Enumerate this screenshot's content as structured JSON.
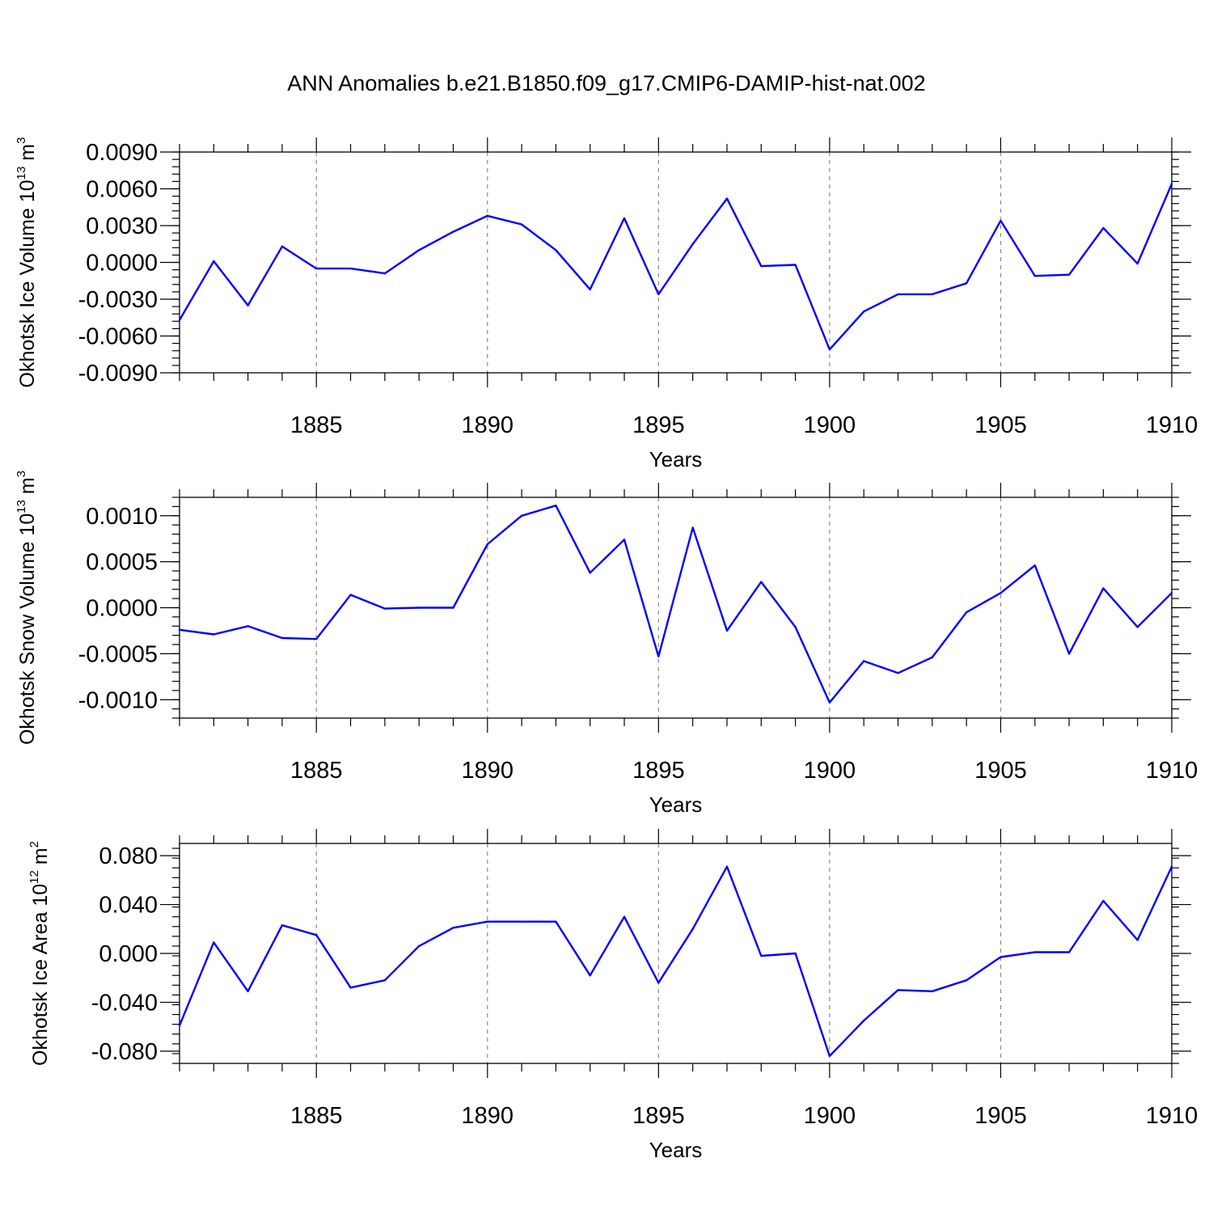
{
  "figure_title": "ANN Anomalies b.e21.B1850.f09_g17.CMIP6-DAMIP-hist-nat.002",
  "colors": {
    "series": "#0000ff",
    "axes": "#000000",
    "grid": "#8a8a8a"
  },
  "chart_data": [
    {
      "type": "line",
      "series_name": "Okhotsk Ice Volume",
      "xlabel": "Years",
      "ylabel": {
        "text": "Okhotsk Ice Volume 10",
        "sup1": "13",
        "mid": " m",
        "sup2": "3"
      },
      "xlim": [
        1881,
        1910
      ],
      "ylim": [
        -0.009,
        0.009
      ],
      "xticks": [
        "1885",
        "1890",
        "1895",
        "1900",
        "1905",
        "1910"
      ],
      "yticks": [
        "0.0090",
        "0.0060",
        "0.0030",
        "0.0000",
        "-0.0030",
        "-0.0060",
        "-0.0090"
      ],
      "ytick_values": [
        0.009,
        0.006,
        0.003,
        0.0,
        -0.003,
        -0.006,
        -0.009
      ],
      "x": [
        1881,
        1882,
        1883,
        1884,
        1885,
        1886,
        1887,
        1888,
        1889,
        1890,
        1891,
        1892,
        1893,
        1894,
        1895,
        1896,
        1897,
        1898,
        1899,
        1900,
        1901,
        1902,
        1903,
        1904,
        1905,
        1906,
        1907,
        1908,
        1909,
        1910
      ],
      "values": [
        -0.0047,
        0.0001,
        -0.0035,
        0.0013,
        -0.0005,
        -0.0005,
        -0.0009,
        0.001,
        0.0025,
        0.0038,
        0.0031,
        0.001,
        -0.0022,
        0.0036,
        -0.0026,
        0.0015,
        0.0052,
        -0.0003,
        -0.0002,
        -0.0071,
        -0.004,
        -0.0026,
        -0.0026,
        -0.0017,
        0.0034,
        -0.0011,
        -0.001,
        0.0028,
        -0.0001,
        0.0064
      ]
    },
    {
      "type": "line",
      "series_name": "Okhotsk Snow Volume",
      "xlabel": "Years",
      "ylabel": {
        "text": "Okhotsk Snow Volume 10",
        "sup1": "13",
        "mid": " m",
        "sup2": "3"
      },
      "xlim": [
        1881,
        1910
      ],
      "ylim": [
        -0.0012,
        0.0012
      ],
      "xticks": [
        "1885",
        "1890",
        "1895",
        "1900",
        "1905",
        "1910"
      ],
      "yticks": [
        "0.0010",
        "0.0005",
        "0.0000",
        "-0.0005",
        "-0.0010"
      ],
      "ytick_values": [
        0.001,
        0.0005,
        0.0,
        -0.0005,
        -0.001
      ],
      "x": [
        1881,
        1882,
        1883,
        1884,
        1885,
        1886,
        1887,
        1888,
        1889,
        1890,
        1891,
        1892,
        1893,
        1894,
        1895,
        1896,
        1897,
        1898,
        1899,
        1900,
        1901,
        1902,
        1903,
        1904,
        1905,
        1906,
        1907,
        1908,
        1909,
        1910
      ],
      "values": [
        -0.00024,
        -0.00029,
        -0.0002,
        -0.00033,
        -0.00034,
        0.00014,
        -1e-05,
        0.0,
        0.0,
        0.00069,
        0.001,
        0.00111,
        0.00038,
        0.00074,
        -0.00053,
        0.00087,
        -0.00025,
        0.00028,
        -0.00021,
        -0.00103,
        -0.00058,
        -0.00071,
        -0.00054,
        -5e-05,
        0.00016,
        0.00046,
        -0.0005,
        0.00021,
        -0.00021,
        0.00016
      ]
    },
    {
      "type": "line",
      "series_name": "Okhotsk Ice Area",
      "xlabel": "Years",
      "ylabel": {
        "text": "Okhotsk Ice Area 10",
        "sup1": "12",
        "mid": " m",
        "sup2": "2"
      },
      "xlim": [
        1881,
        1910
      ],
      "ylim": [
        -0.09,
        0.09
      ],
      "xticks": [
        "1885",
        "1890",
        "1895",
        "1900",
        "1905",
        "1910"
      ],
      "yticks": [
        "0.080",
        "0.040",
        "0.000",
        "-0.040",
        "-0.080"
      ],
      "ytick_values": [
        0.08,
        0.04,
        0.0,
        -0.04,
        -0.08
      ],
      "x": [
        1881,
        1882,
        1883,
        1884,
        1885,
        1886,
        1887,
        1888,
        1889,
        1890,
        1891,
        1892,
        1893,
        1894,
        1895,
        1896,
        1897,
        1898,
        1899,
        1900,
        1901,
        1902,
        1903,
        1904,
        1905,
        1906,
        1907,
        1908,
        1909,
        1910
      ],
      "values": [
        -0.059,
        0.009,
        -0.031,
        0.023,
        0.015,
        -0.028,
        -0.022,
        0.006,
        0.021,
        0.026,
        0.026,
        0.026,
        -0.018,
        0.03,
        -0.024,
        0.02,
        0.071,
        -0.002,
        0.0,
        -0.084,
        -0.055,
        -0.03,
        -0.031,
        -0.022,
        -0.003,
        0.001,
        0.001,
        0.043,
        0.011,
        0.071
      ]
    }
  ]
}
